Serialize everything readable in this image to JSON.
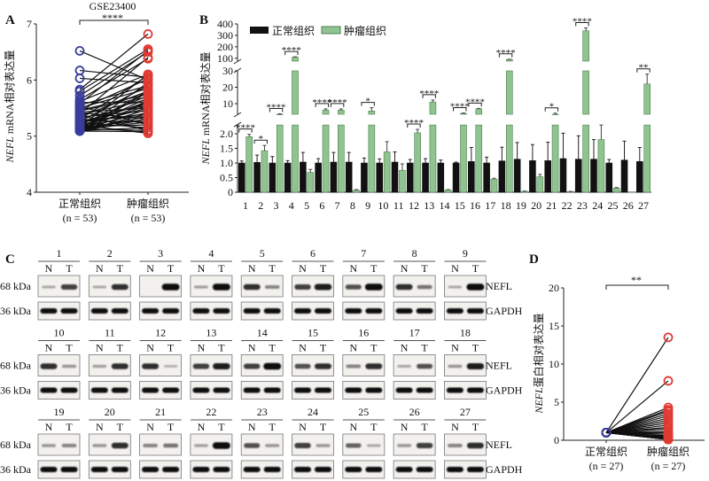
{
  "panel_labels": {
    "a": "A",
    "b": "B",
    "c": "C",
    "d": "D"
  },
  "colors": {
    "normal_bar": "#111111",
    "tumor_bar": "#8fc490",
    "tumor_edge": "#4e7d50",
    "normal_point": "#3a3d9a",
    "tumor_point": "#e03a32",
    "line": "#111111"
  },
  "chart_data": [
    {
      "id": "A",
      "type": "scatter",
      "title": "GSE23400",
      "ylabel_italic": "NEFL",
      "ylabel_rest": " mRNA相对表达量",
      "yticks": [
        "4",
        "5",
        "6",
        "7"
      ],
      "ylim": [
        4,
        7
      ],
      "categories": [
        {
          "label": "正常组织",
          "n": "(n = 53)"
        },
        {
          "label": "肿瘤组织",
          "n": "(n = 53)"
        }
      ],
      "significance": "****",
      "paired": true,
      "normal": [
        6.52,
        6.17,
        6.03,
        5.83,
        5.8,
        5.72,
        5.65,
        5.62,
        5.6,
        5.58,
        5.55,
        5.53,
        5.5,
        5.48,
        5.46,
        5.45,
        5.43,
        5.42,
        5.4,
        5.38,
        5.37,
        5.35,
        5.34,
        5.32,
        5.3,
        5.29,
        5.28,
        5.26,
        5.25,
        5.24,
        5.22,
        5.21,
        5.2,
        5.19,
        5.18,
        5.17,
        5.16,
        5.15,
        5.15,
        5.14,
        5.13,
        5.13,
        5.12,
        5.12,
        5.11,
        5.11,
        5.1,
        5.1,
        5.1,
        5.1,
        5.09,
        5.09,
        5.09
      ],
      "tumor": [
        6.0,
        6.05,
        5.95,
        6.82,
        6.55,
        6.5,
        6.38,
        6.1,
        5.6,
        6.52,
        5.9,
        5.2,
        5.85,
        6.02,
        5.75,
        5.7,
        5.5,
        5.3,
        6.4,
        5.65,
        5.1,
        5.8,
        5.45,
        5.55,
        6.08,
        5.35,
        5.25,
        5.9,
        5.4,
        5.15,
        5.6,
        5.72,
        5.05,
        5.5,
        5.62,
        5.2,
        6.1,
        5.3,
        5.42,
        5.8,
        5.1,
        5.55,
        5.68,
        5.25,
        5.95,
        5.35,
        5.48,
        5.15,
        5.78,
        5.6,
        5.4,
        5.08,
        5.3
      ]
    },
    {
      "id": "B",
      "type": "bar",
      "ylabel_italic": "NEFL",
      "ylabel_rest": " mRNA相对表达量",
      "y_scale": "segmented with axis breaks",
      "yticks_low": [
        "0",
        "0.5",
        "1.0",
        "1.5",
        "2.0"
      ],
      "yticks_mid": [
        "10",
        "20",
        "30"
      ],
      "yticks_high": [
        "100",
        "200",
        "300",
        "400"
      ],
      "legend": [
        "正常组织",
        "肿瘤组织"
      ],
      "legend_position": "top-left",
      "categories": [
        "1",
        "2",
        "3",
        "4",
        "5",
        "6",
        "7",
        "8",
        "9",
        "10",
        "11",
        "12",
        "13",
        "14",
        "15",
        "16",
        "17",
        "18",
        "19",
        "20",
        "21",
        "22",
        "23",
        "24",
        "25",
        "26",
        "27"
      ],
      "series": [
        {
          "name": "正常组织",
          "values": [
            1.0,
            1.02,
            1.0,
            1.0,
            1.03,
            1.0,
            1.03,
            1.03,
            1.0,
            1.0,
            1.03,
            1.0,
            1.0,
            1.0,
            1.0,
            1.05,
            1.0,
            1.07,
            1.13,
            1.08,
            1.08,
            1.15,
            1.13,
            1.13,
            1.0,
            1.1,
            1.05
          ],
          "errors": [
            0.07,
            0.25,
            0.22,
            0.08,
            0.33,
            0.15,
            0.33,
            0.33,
            0.17,
            0.14,
            0.35,
            0.12,
            0.15,
            0.1,
            0.03,
            0.48,
            0.2,
            0.47,
            0.57,
            0.55,
            0.63,
            0.87,
            0.8,
            0.67,
            0.12,
            0.65,
            0.48
          ]
        },
        {
          "name": "肿瘤组织",
          "values": [
            1.9,
            1.42,
            3.5,
            110,
            0.68,
            6,
            6,
            0.07,
            5.5,
            1.38,
            0.75,
            2.03,
            11,
            0.08,
            4,
            6.8,
            0.45,
            90,
            0.03,
            0.53,
            3.2,
            0.02,
            340,
            1.8,
            0.14,
            0.01,
            22
          ],
          "errors": [
            0.08,
            0.18,
            0.3,
            3,
            0.1,
            0.8,
            0.8,
            0.02,
            2,
            0.35,
            0.22,
            0.12,
            1.2,
            0.01,
            0.3,
            0.3,
            0.03,
            2,
            0.01,
            0.08,
            1,
            0.01,
            25,
            0.5,
            0.02,
            0,
            6
          ]
        }
      ],
      "significance": [
        "****",
        "*",
        "****",
        "****",
        "",
        "****",
        "****",
        "",
        "*",
        "",
        "",
        "****",
        "****",
        "",
        "****",
        "****",
        "",
        "****",
        "",
        "",
        "*",
        "",
        "****",
        "",
        "",
        "",
        "**"
      ]
    },
    {
      "id": "D",
      "type": "scatter",
      "ylabel_italic": "NEFL",
      "ylabel_rest": "蛋白相对表达量",
      "yticks": [
        "0",
        "5",
        "10",
        "15",
        "20"
      ],
      "ylim": [
        0,
        20
      ],
      "categories": [
        {
          "label": "正常组织",
          "n": "(n = 27)"
        },
        {
          "label": "肿瘤组织",
          "n": "(n = 27)"
        }
      ],
      "significance": "**",
      "paired": true,
      "normal": [
        1,
        1,
        1,
        1,
        1,
        1,
        1,
        1,
        1,
        1,
        1,
        1,
        1,
        1,
        1,
        1,
        1,
        1,
        1,
        1,
        1,
        1,
        1,
        1,
        1,
        1,
        1
      ],
      "tumor": [
        13.5,
        7.8,
        4.3,
        4.0,
        3.8,
        3.5,
        3.2,
        2.9,
        2.6,
        2.3,
        2.0,
        1.7,
        1.5,
        1.2,
        1.0,
        0.8,
        0.6,
        0.5,
        0.4,
        0.3,
        0.3,
        0.2,
        0.2,
        0.1,
        0.1,
        0.1,
        0.1
      ]
    }
  ],
  "western_blot": {
    "lane_labels": [
      "N",
      "T"
    ],
    "marker_top": "68 kDa",
    "marker_bottom": "36 kDa",
    "protein_top": "NEFL",
    "protein_bottom": "GAPDH",
    "samples": [
      "1",
      "2",
      "3",
      "4",
      "5",
      "6",
      "7",
      "8",
      "9",
      "10",
      "11",
      "12",
      "13",
      "14",
      "15",
      "16",
      "17",
      "18",
      "19",
      "20",
      "21",
      "22",
      "23",
      "24",
      "25",
      "26",
      "27"
    ],
    "nefl_intensity": [
      [
        0.1,
        0.7
      ],
      [
        0.1,
        0.8
      ],
      [
        0,
        1
      ],
      [
        0.15,
        1
      ],
      [
        0.8,
        0.3
      ],
      [
        0.7,
        0.9
      ],
      [
        0.6,
        1
      ],
      [
        0.8,
        0.4
      ],
      [
        0.1,
        1
      ],
      [
        0.8,
        0.2
      ],
      [
        0.15,
        0.8
      ],
      [
        0.8,
        0.05
      ],
      [
        0.7,
        0.9
      ],
      [
        0.7,
        1
      ],
      [
        0.6,
        0.8
      ],
      [
        0.3,
        0.8
      ],
      [
        0.1,
        0.6
      ],
      [
        0.2,
        0.9
      ],
      [
        0.2,
        0.3
      ],
      [
        0.2,
        0.8
      ],
      [
        0.3,
        0.4
      ],
      [
        0.15,
        1
      ],
      [
        0.6,
        0.2
      ],
      [
        0.7,
        0.2
      ],
      [
        0.5,
        0.1
      ],
      [
        0.2,
        0.7
      ],
      [
        0.3,
        0.8
      ]
    ]
  }
}
